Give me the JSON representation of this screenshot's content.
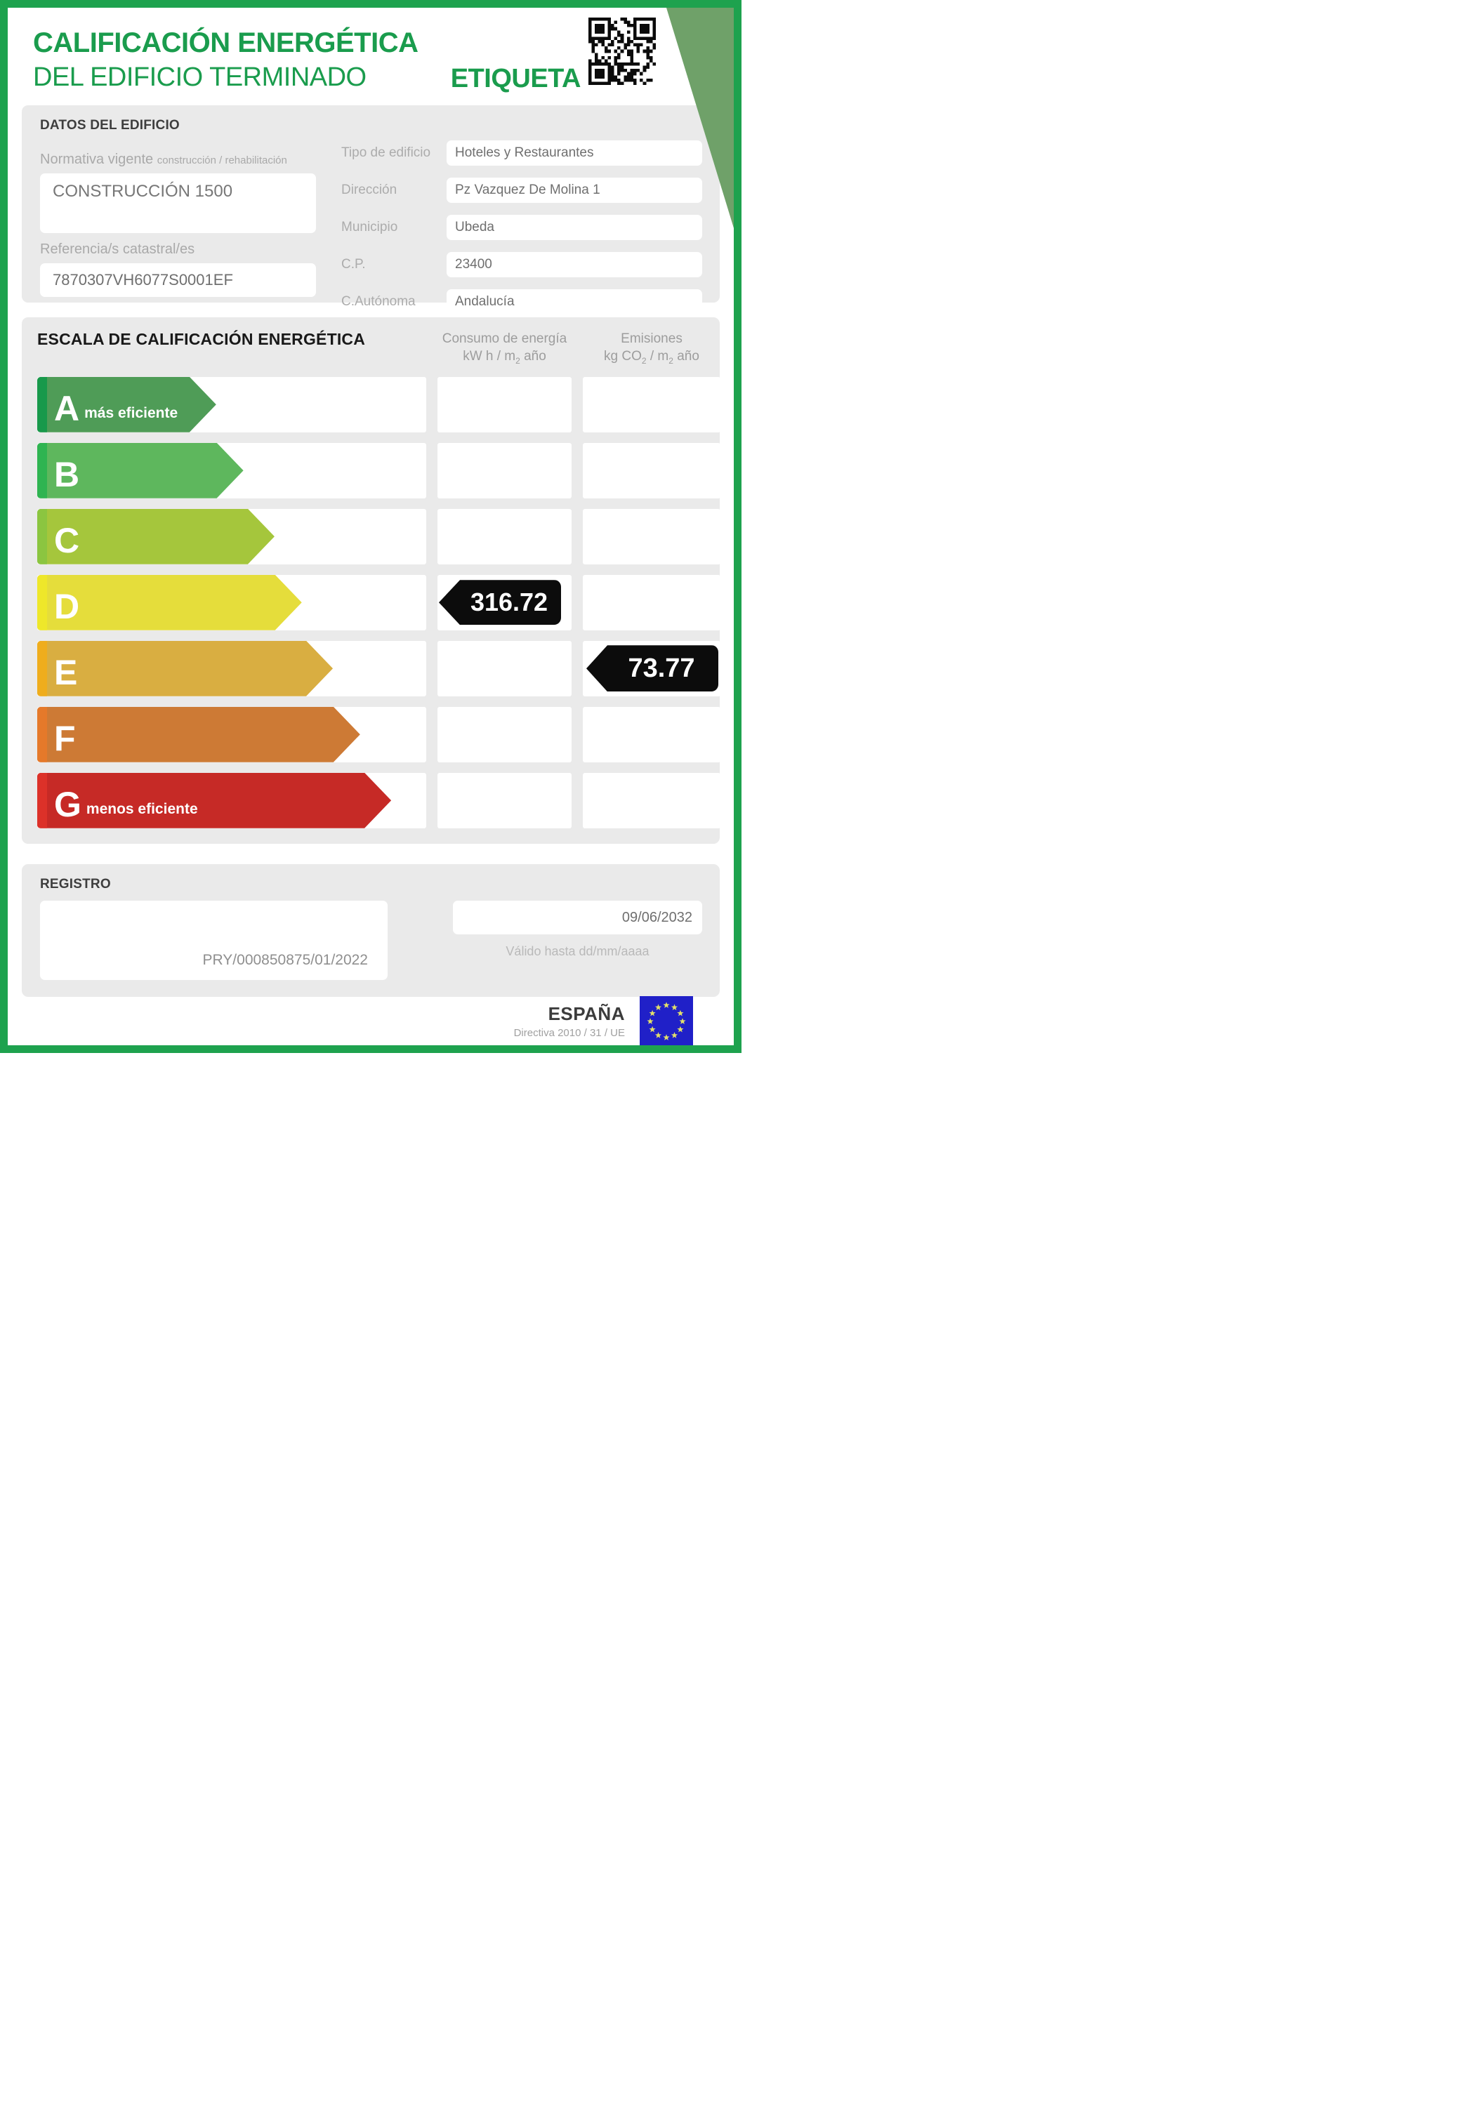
{
  "colors": {
    "brand": "#1EA24E",
    "title_green": "#1A9C4D",
    "sage": "#6FA169",
    "section_bg": "#EAEAEA",
    "badge_black": "#0C0C0C",
    "eu_blue": "#2020C8",
    "eu_star": "#E3E06A"
  },
  "header": {
    "title_line1": "CALIFICACIÓN ENERGÉTICA",
    "title_line2": "DEL EDIFICIO TERMINADO",
    "etiqueta": "ETIQUETA",
    "qr_icon": "qr-code"
  },
  "building": {
    "section_title": "DATOS DEL EDIFICIO",
    "normativa_label": "Normativa vigente",
    "normativa_sublabel": "construcción / rehabilitación",
    "normativa_value": "CONSTRUCCIÓN 1500",
    "referencia_label": "Referencia/s catastral/es",
    "referencia_value": "7870307VH6077S0001EF",
    "fields": [
      {
        "label": "Tipo de edificio",
        "value": "Hoteles y Restaurantes"
      },
      {
        "label": "Dirección",
        "value": "Pz Vazquez De Molina 1"
      },
      {
        "label": "Municipio",
        "value": "Ubeda"
      },
      {
        "label": "C.P.",
        "value": "23400"
      },
      {
        "label": "C.Autónoma",
        "value": "Andalucía"
      }
    ]
  },
  "scale": {
    "section_title": "ESCALA DE CALIFICACIÓN ENERGÉTICA",
    "consumo_header": {
      "line1": "Consumo de energía",
      "unit_pre": "kW h / m",
      "unit_sub": "2",
      "unit_post": " año"
    },
    "emisiones_header": {
      "line1": "Emisiones",
      "unit_pre": "kg CO",
      "unit_sub1": "2",
      "unit_mid": " / m",
      "unit_sub2": "2",
      "unit_post": " año"
    },
    "ratings": [
      {
        "letter": "A",
        "note": "más eficiente",
        "body": "#4F9C57",
        "stripe": "#18994B",
        "width_pct": 46,
        "consumo": "",
        "emisiones": ""
      },
      {
        "letter": "B",
        "note": "",
        "body": "#5EB75D",
        "stripe": "#2FB451",
        "width_pct": 53,
        "consumo": "",
        "emisiones": ""
      },
      {
        "letter": "C",
        "note": "",
        "body": "#A5C63C",
        "stripe": "#8BC540",
        "width_pct": 61,
        "consumo": "",
        "emisiones": ""
      },
      {
        "letter": "D",
        "note": "",
        "body": "#E5DD3B",
        "stripe": "#EEE72A",
        "width_pct": 68,
        "consumo": "316.72",
        "emisiones": ""
      },
      {
        "letter": "E",
        "note": "",
        "body": "#D9AE41",
        "stripe": "#EFAD1D",
        "width_pct": 76,
        "consumo": "",
        "emisiones": "73.77"
      },
      {
        "letter": "F",
        "note": "",
        "body": "#CD7A35",
        "stripe": "#E5792A",
        "width_pct": 83,
        "consumo": "",
        "emisiones": ""
      },
      {
        "letter": "G",
        "note": "menos eficiente",
        "body": "#C62A26",
        "stripe": "#DC3129",
        "width_pct": 91,
        "consumo": "",
        "emisiones": ""
      }
    ]
  },
  "registro": {
    "section_title": "REGISTRO",
    "registro_value": "PRY/000850875/01/2022",
    "valid_date": "09/06/2032",
    "valid_hint": "Válido hasta dd/mm/aaaa"
  },
  "footer": {
    "country": "ESPAÑA",
    "directive": "Directiva 2010 / 31 / UE",
    "eu_flag_icon": "eu-flag"
  }
}
